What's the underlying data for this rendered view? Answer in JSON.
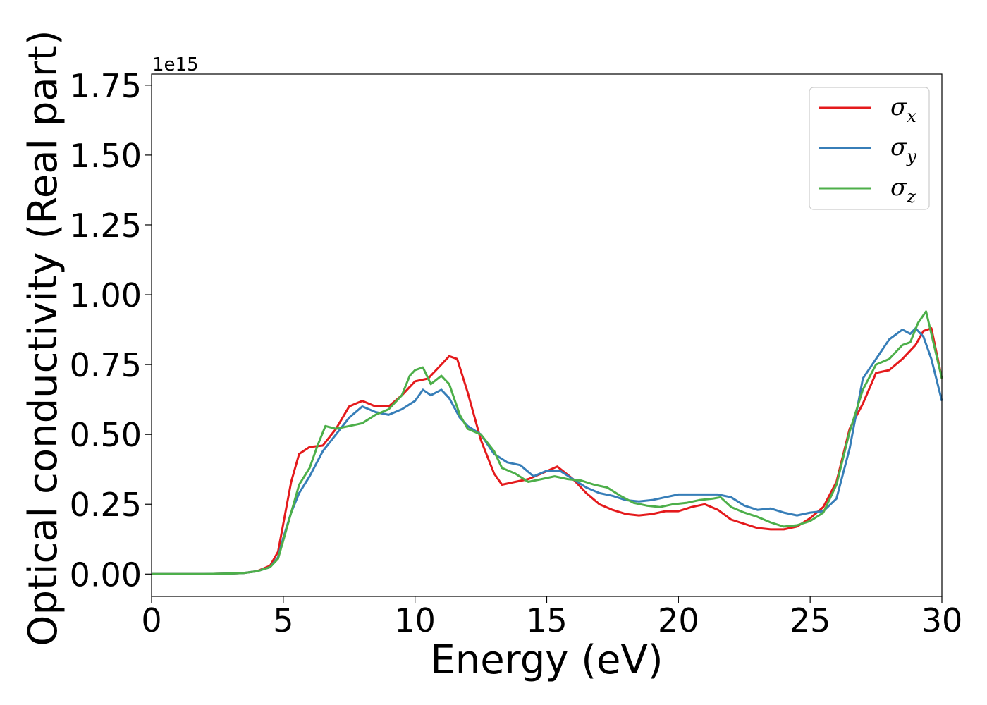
{
  "chart_data": {
    "type": "line",
    "xlabel": "Energy (eV)",
    "ylabel": "Optical conductivity (Real part)",
    "y_offset_label": "1e15",
    "xlim": [
      0,
      30
    ],
    "ylim": [
      -0.08,
      1.79
    ],
    "xticks": [
      0,
      5,
      10,
      15,
      20,
      25,
      30
    ],
    "xtick_labels": [
      "0",
      "5",
      "10",
      "15",
      "20",
      "25",
      "30"
    ],
    "yticks": [
      0.0,
      0.25,
      0.5,
      0.75,
      1.0,
      1.25,
      1.5,
      1.75
    ],
    "ytick_labels": [
      "0.00",
      "0.25",
      "0.50",
      "0.75",
      "1.00",
      "1.25",
      "1.50",
      "1.75"
    ],
    "grid": false,
    "legend_position": "top-right",
    "series": [
      {
        "name": "σx",
        "symbol": "σ",
        "subscript": "x",
        "color": "#e41a1c",
        "x": [
          0,
          1,
          2,
          3,
          3.5,
          4,
          4.5,
          4.8,
          5.0,
          5.3,
          5.6,
          6.0,
          6.5,
          7.0,
          7.5,
          8.0,
          8.5,
          9.0,
          9.5,
          10.0,
          10.5,
          11.0,
          11.3,
          11.6,
          12.0,
          12.5,
          13.0,
          13.3,
          13.8,
          14.3,
          14.8,
          15.4,
          16.0,
          16.5,
          17.0,
          17.5,
          18.0,
          18.5,
          19.0,
          19.5,
          20.0,
          20.5,
          21.0,
          21.5,
          22.0,
          22.5,
          23.0,
          23.5,
          24.0,
          24.5,
          25.0,
          25.5,
          26.0,
          26.5,
          27.0,
          27.5,
          28.0,
          28.5,
          29.0,
          29.3,
          29.6,
          30.0
        ],
        "y": [
          0,
          0,
          0,
          0.002,
          0.004,
          0.01,
          0.03,
          0.08,
          0.18,
          0.33,
          0.43,
          0.455,
          0.46,
          0.52,
          0.6,
          0.62,
          0.6,
          0.6,
          0.64,
          0.69,
          0.7,
          0.75,
          0.78,
          0.77,
          0.65,
          0.48,
          0.36,
          0.32,
          0.33,
          0.34,
          0.36,
          0.385,
          0.34,
          0.29,
          0.25,
          0.23,
          0.215,
          0.21,
          0.215,
          0.225,
          0.225,
          0.24,
          0.25,
          0.23,
          0.195,
          0.18,
          0.165,
          0.16,
          0.16,
          0.17,
          0.2,
          0.24,
          0.33,
          0.52,
          0.61,
          0.72,
          0.73,
          0.77,
          0.82,
          0.87,
          0.88,
          0.7
        ]
      },
      {
        "name": "σy",
        "symbol": "σ",
        "subscript": "y",
        "color": "#377eb8",
        "x": [
          0,
          1,
          2,
          3,
          3.5,
          4,
          4.5,
          4.8,
          5.0,
          5.3,
          5.6,
          6.0,
          6.5,
          7.0,
          7.5,
          8.0,
          8.5,
          9.0,
          9.5,
          10.0,
          10.3,
          10.6,
          11.0,
          11.3,
          11.7,
          12.0,
          12.5,
          13.0,
          13.5,
          14.0,
          14.5,
          15.0,
          15.5,
          16.0,
          16.5,
          17.0,
          17.5,
          18.0,
          18.5,
          19.0,
          19.5,
          20.0,
          20.5,
          21.0,
          21.5,
          22.0,
          22.5,
          23.0,
          23.5,
          24.0,
          24.5,
          25.0,
          25.5,
          26.0,
          26.5,
          27.0,
          27.5,
          28.0,
          28.5,
          28.8,
          29.0,
          29.3,
          29.6,
          30.0
        ],
        "y": [
          0,
          0,
          0,
          0.002,
          0.004,
          0.01,
          0.025,
          0.06,
          0.13,
          0.22,
          0.29,
          0.35,
          0.44,
          0.5,
          0.56,
          0.6,
          0.58,
          0.57,
          0.59,
          0.62,
          0.66,
          0.64,
          0.66,
          0.63,
          0.56,
          0.53,
          0.5,
          0.43,
          0.4,
          0.39,
          0.35,
          0.37,
          0.37,
          0.34,
          0.31,
          0.29,
          0.28,
          0.265,
          0.26,
          0.265,
          0.275,
          0.285,
          0.285,
          0.285,
          0.285,
          0.275,
          0.245,
          0.23,
          0.235,
          0.22,
          0.21,
          0.22,
          0.225,
          0.27,
          0.45,
          0.7,
          0.77,
          0.84,
          0.875,
          0.86,
          0.88,
          0.85,
          0.77,
          0.62
        ]
      },
      {
        "name": "σz",
        "symbol": "σ",
        "subscript": "z",
        "color": "#4daf4a",
        "x": [
          0,
          1,
          2,
          3,
          3.5,
          4,
          4.5,
          4.8,
          5.0,
          5.3,
          5.6,
          6.0,
          6.3,
          6.6,
          7.0,
          7.5,
          8.0,
          8.5,
          9.0,
          9.5,
          9.8,
          10.0,
          10.3,
          10.6,
          11.0,
          11.3,
          11.7,
          12.0,
          12.5,
          13.0,
          13.3,
          13.8,
          14.3,
          14.8,
          15.3,
          15.8,
          16.3,
          16.8,
          17.3,
          17.8,
          18.3,
          18.8,
          19.3,
          19.8,
          20.3,
          20.8,
          21.3,
          21.6,
          22.0,
          22.5,
          23.0,
          23.5,
          24.0,
          24.5,
          25.0,
          25.5,
          26.0,
          26.5,
          27.0,
          27.5,
          28.0,
          28.5,
          28.8,
          29.1,
          29.4,
          30.0
        ],
        "y": [
          0,
          0,
          0,
          0.002,
          0.004,
          0.01,
          0.025,
          0.055,
          0.12,
          0.22,
          0.32,
          0.38,
          0.46,
          0.53,
          0.52,
          0.53,
          0.54,
          0.57,
          0.59,
          0.64,
          0.71,
          0.73,
          0.74,
          0.68,
          0.71,
          0.68,
          0.57,
          0.52,
          0.5,
          0.44,
          0.38,
          0.36,
          0.33,
          0.34,
          0.35,
          0.34,
          0.335,
          0.32,
          0.31,
          0.28,
          0.255,
          0.245,
          0.24,
          0.25,
          0.255,
          0.265,
          0.27,
          0.275,
          0.24,
          0.22,
          0.205,
          0.185,
          0.17,
          0.175,
          0.19,
          0.22,
          0.32,
          0.51,
          0.66,
          0.75,
          0.77,
          0.82,
          0.83,
          0.9,
          0.94,
          0.7
        ]
      }
    ]
  }
}
